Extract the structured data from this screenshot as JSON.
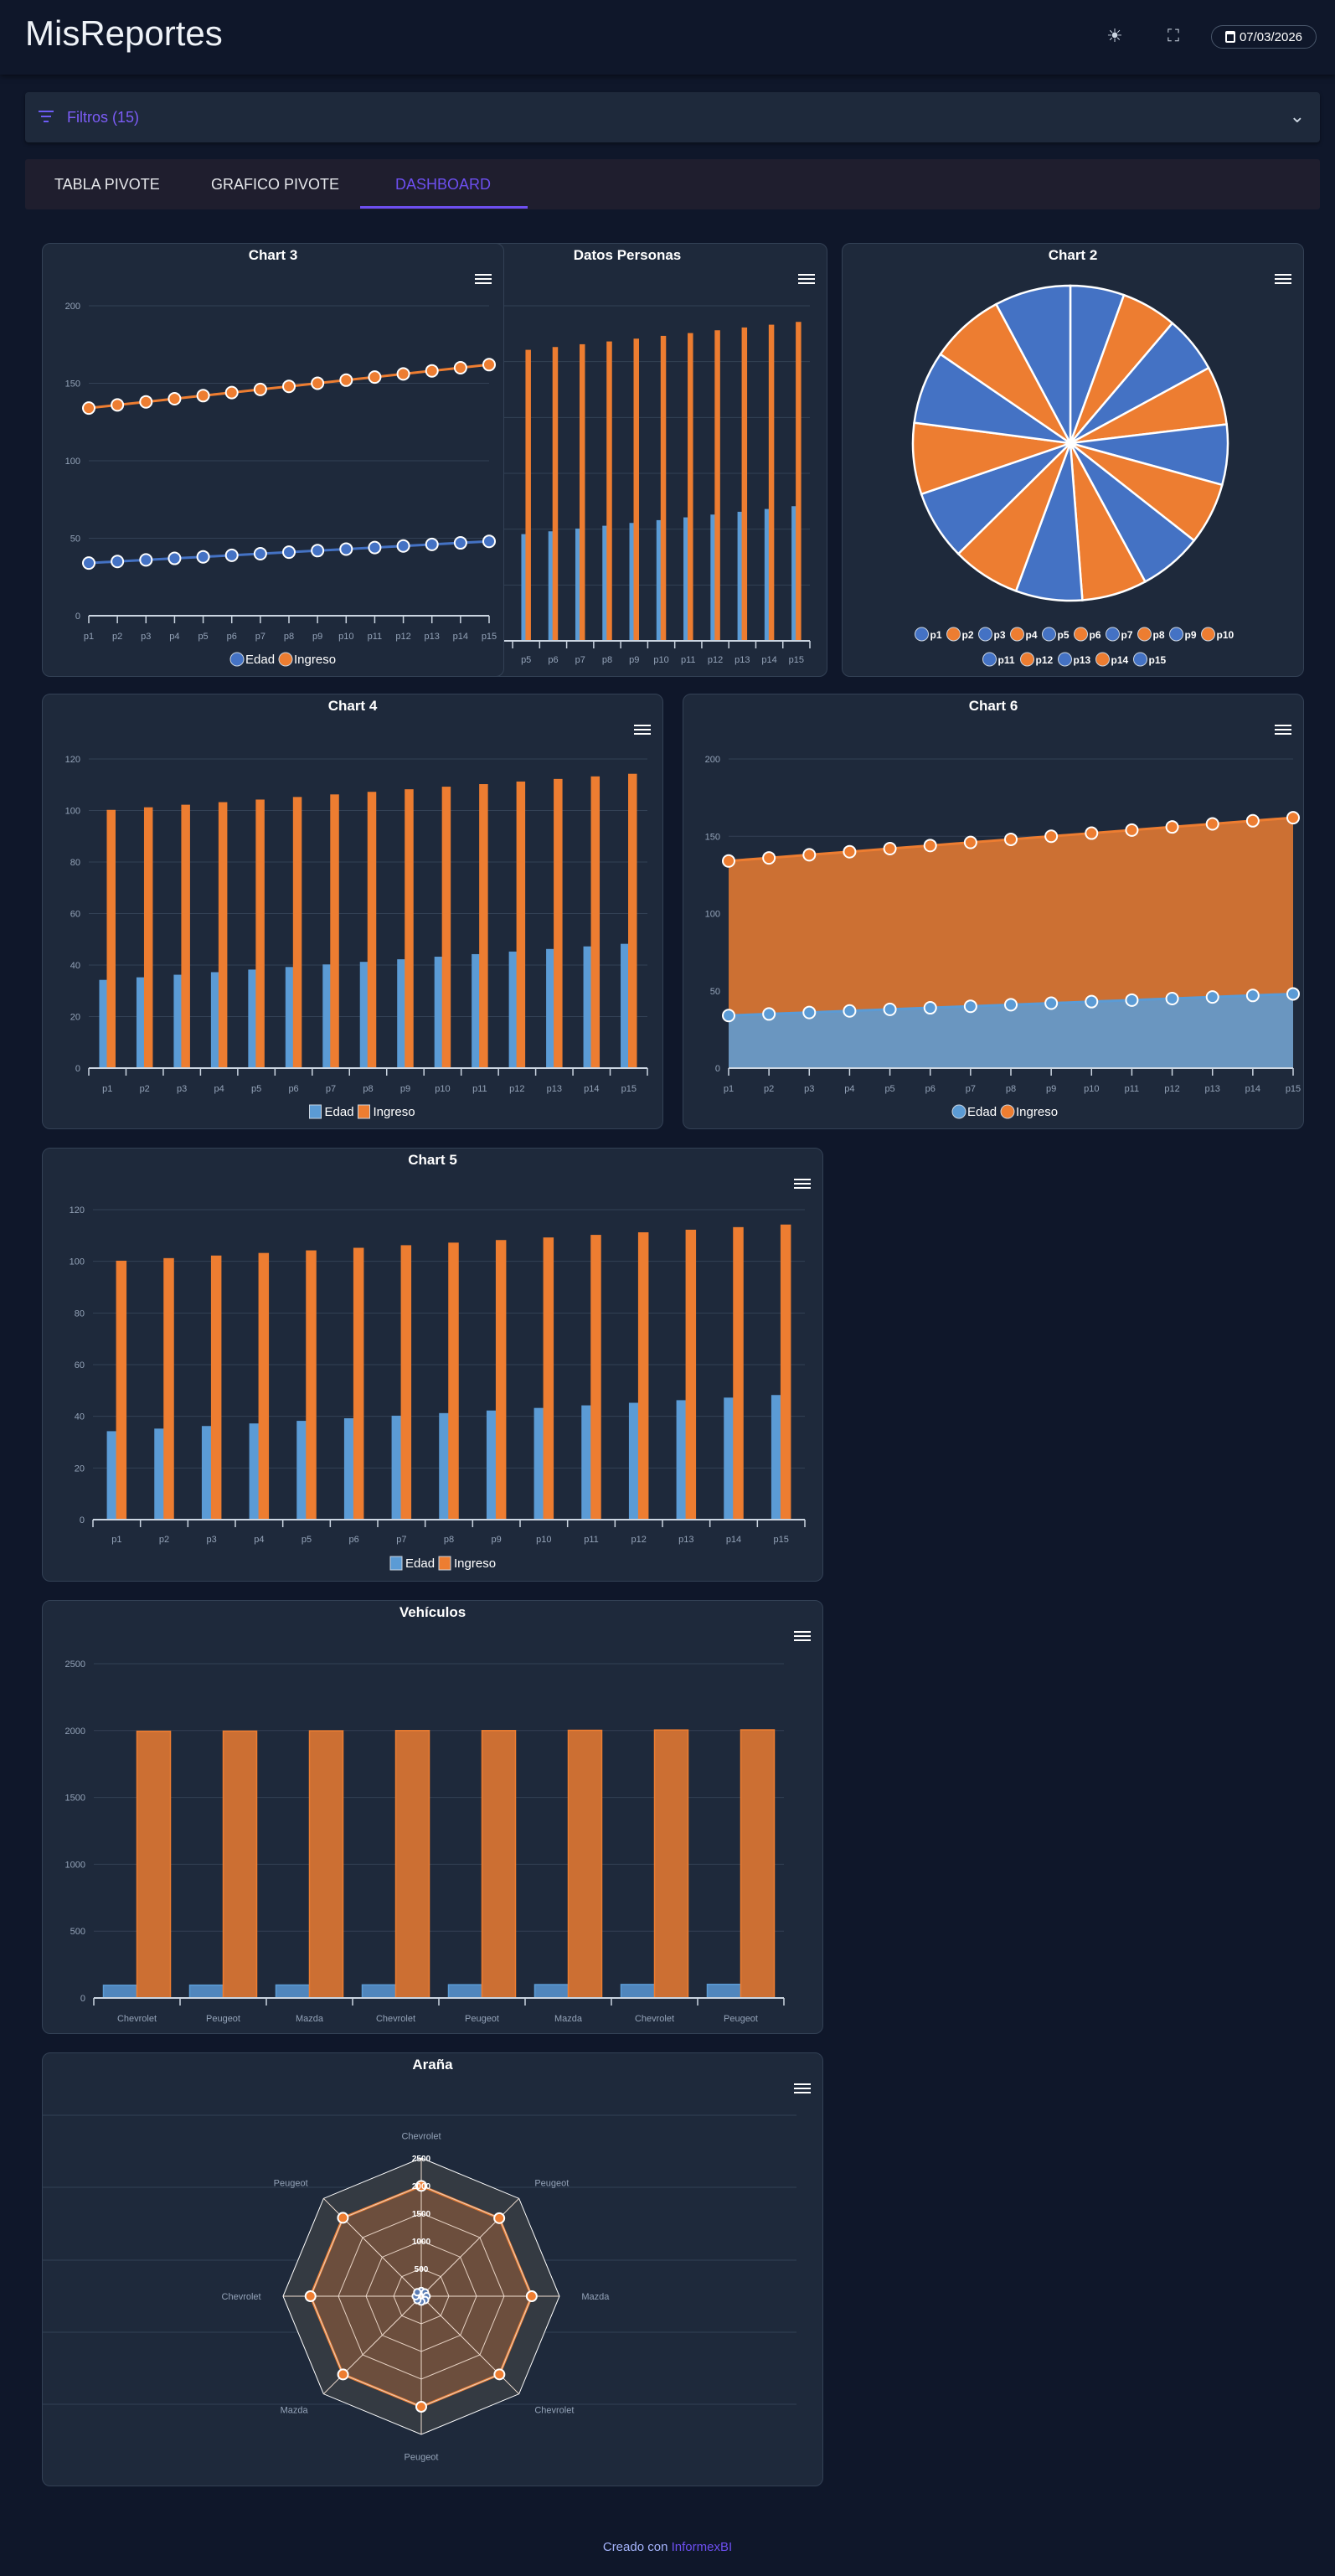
{
  "header": {
    "title": "MisReportes",
    "date": "07/03/2026",
    "icons": [
      "sun-icon",
      "fullscreen-icon",
      "calendar-icon"
    ]
  },
  "filters": {
    "label": "Filtros (15)",
    "icon": "filter-icon"
  },
  "tabs": [
    {
      "label": "TABLA PIVOTE"
    },
    {
      "label": "GRAFICO PIVOTE"
    },
    {
      "label": "DASHBOARD",
      "active": true
    }
  ],
  "colors": {
    "accent": "#6d4ff0",
    "blue": "#4472c4",
    "orange": "#ed7d31",
    "bar_blue": "#5b9bd5",
    "card": "#1e293b",
    "background": "#0f172a"
  },
  "footer": {
    "prefix": "Creado con",
    "brand": "InformexBI"
  },
  "chart_data": [
    {
      "id": "chart3",
      "type": "line",
      "stacked": true,
      "title": "Chart 3",
      "categories": [
        "p1",
        "p2",
        "p3",
        "p4",
        "p5",
        "p6",
        "p7",
        "p8",
        "p9",
        "p10",
        "p11",
        "p12",
        "p13",
        "p14",
        "p15"
      ],
      "series": [
        {
          "name": "Edad",
          "values": [
            34,
            35,
            36,
            37,
            38,
            39,
            40,
            41,
            42,
            43,
            44,
            45,
            46,
            47,
            48
          ]
        },
        {
          "name": "Ingreso",
          "values": [
            100,
            101,
            102,
            103,
            104,
            105,
            106,
            107,
            108,
            109,
            110,
            111,
            112,
            113,
            114
          ]
        }
      ],
      "ylim": [
        0,
        200
      ],
      "yticks": [
        0,
        50,
        100,
        150,
        200
      ],
      "grid": true,
      "legend": "bottom"
    },
    {
      "id": "datos",
      "type": "bar",
      "title": "Datos Personas",
      "categories": [
        "p1",
        "p2",
        "p3",
        "p4",
        "p5",
        "p6",
        "p7",
        "p8",
        "p9",
        "p10",
        "p11",
        "p12",
        "p13",
        "p14",
        "p15"
      ],
      "series": [
        {
          "name": "Edad",
          "values": [
            34,
            35,
            36,
            37,
            38,
            39,
            40,
            41,
            42,
            43,
            44,
            45,
            46,
            47,
            48
          ]
        },
        {
          "name": "Ingreso",
          "values": [
            100,
            101,
            102,
            103,
            104,
            105,
            106,
            107,
            108,
            109,
            110,
            111,
            112,
            113,
            114
          ]
        }
      ],
      "ylim": [
        0,
        120
      ],
      "grid": true
    },
    {
      "id": "chart2",
      "type": "pie",
      "title": "Chart 2",
      "categories": [
        "p1",
        "p2",
        "p3",
        "p4",
        "p5",
        "p6",
        "p7",
        "p8",
        "p9",
        "p10",
        "p11",
        "p12",
        "p13",
        "p14",
        "p15"
      ],
      "values": [
        34,
        35,
        36,
        37,
        38,
        39,
        40,
        41,
        42,
        43,
        44,
        45,
        46,
        47,
        48
      ],
      "legend": "bottom"
    },
    {
      "id": "chart4",
      "type": "bar",
      "title": "Chart 4",
      "categories": [
        "p1",
        "p2",
        "p3",
        "p4",
        "p5",
        "p6",
        "p7",
        "p8",
        "p9",
        "p10",
        "p11",
        "p12",
        "p13",
        "p14",
        "p15"
      ],
      "series": [
        {
          "name": "Edad",
          "values": [
            34,
            35,
            36,
            37,
            38,
            39,
            40,
            41,
            42,
            43,
            44,
            45,
            46,
            47,
            48
          ]
        },
        {
          "name": "Ingreso",
          "values": [
            100,
            101,
            102,
            103,
            104,
            105,
            106,
            107,
            108,
            109,
            110,
            111,
            112,
            113,
            114
          ]
        }
      ],
      "ylim": [
        0,
        120
      ],
      "yticks": [
        0,
        20,
        40,
        60,
        80,
        100,
        120
      ],
      "grid": true,
      "legend": "bottom"
    },
    {
      "id": "chart6",
      "type": "area",
      "stacked": true,
      "title": "Chart 6",
      "categories": [
        "p1",
        "p2",
        "p3",
        "p4",
        "p5",
        "p6",
        "p7",
        "p8",
        "p9",
        "p10",
        "p11",
        "p12",
        "p13",
        "p14",
        "p15"
      ],
      "series": [
        {
          "name": "Edad",
          "values": [
            34,
            35,
            36,
            37,
            38,
            39,
            40,
            41,
            42,
            43,
            44,
            45,
            46,
            47,
            48
          ]
        },
        {
          "name": "Ingreso",
          "values": [
            100,
            101,
            102,
            103,
            104,
            105,
            106,
            107,
            108,
            109,
            110,
            111,
            112,
            113,
            114
          ]
        }
      ],
      "ylim": [
        0,
        200
      ],
      "yticks": [
        0,
        50,
        100,
        150,
        200
      ],
      "grid": true,
      "legend": "bottom"
    },
    {
      "id": "chart5",
      "type": "bar",
      "title": "Chart 5",
      "categories": [
        "p1",
        "p2",
        "p3",
        "p4",
        "p5",
        "p6",
        "p7",
        "p8",
        "p9",
        "p10",
        "p11",
        "p12",
        "p13",
        "p14",
        "p15"
      ],
      "series": [
        {
          "name": "Edad",
          "values": [
            34,
            35,
            36,
            37,
            38,
            39,
            40,
            41,
            42,
            43,
            44,
            45,
            46,
            47,
            48
          ]
        },
        {
          "name": "Ingreso",
          "values": [
            100,
            101,
            102,
            103,
            104,
            105,
            106,
            107,
            108,
            109,
            110,
            111,
            112,
            113,
            114
          ]
        }
      ],
      "ylim": [
        0,
        120
      ],
      "yticks": [
        0,
        20,
        40,
        60,
        80,
        100,
        120
      ],
      "grid": true,
      "legend": "bottom"
    },
    {
      "id": "vehiculos",
      "type": "bar",
      "title": "Vehículos",
      "categories": [
        "Chevrolet",
        "Peugeot",
        "Mazda",
        "Chevrolet",
        "Peugeot",
        "Mazda",
        "Chevrolet",
        "Peugeot"
      ],
      "series": [
        {
          "values": [
            95,
            96,
            97,
            98,
            99,
            100,
            101,
            102
          ]
        },
        {
          "values": [
            1995,
            1996,
            1998,
            2000,
            2000,
            2002,
            2004,
            2005
          ]
        }
      ],
      "ylim": [
        0,
        2500
      ],
      "yticks": [
        0,
        500,
        1000,
        1500,
        2000,
        2500
      ],
      "grid": true
    },
    {
      "id": "arana",
      "type": "radar",
      "title": "Araña",
      "categories": [
        "Chevrolet",
        "Peugeot",
        "Mazda",
        "Chevrolet",
        "Peugeot",
        "Mazda",
        "Chevrolet",
        "Peugeot"
      ],
      "series": [
        {
          "values": [
            95,
            96,
            97,
            98,
            99,
            100,
            101,
            102
          ]
        },
        {
          "values": [
            1995,
            1996,
            1998,
            2000,
            2000,
            2002,
            2004,
            2005
          ]
        }
      ],
      "rlim": [
        0,
        2500
      ],
      "rticks": [
        0,
        500,
        1000,
        1500,
        2000,
        2500
      ]
    }
  ]
}
